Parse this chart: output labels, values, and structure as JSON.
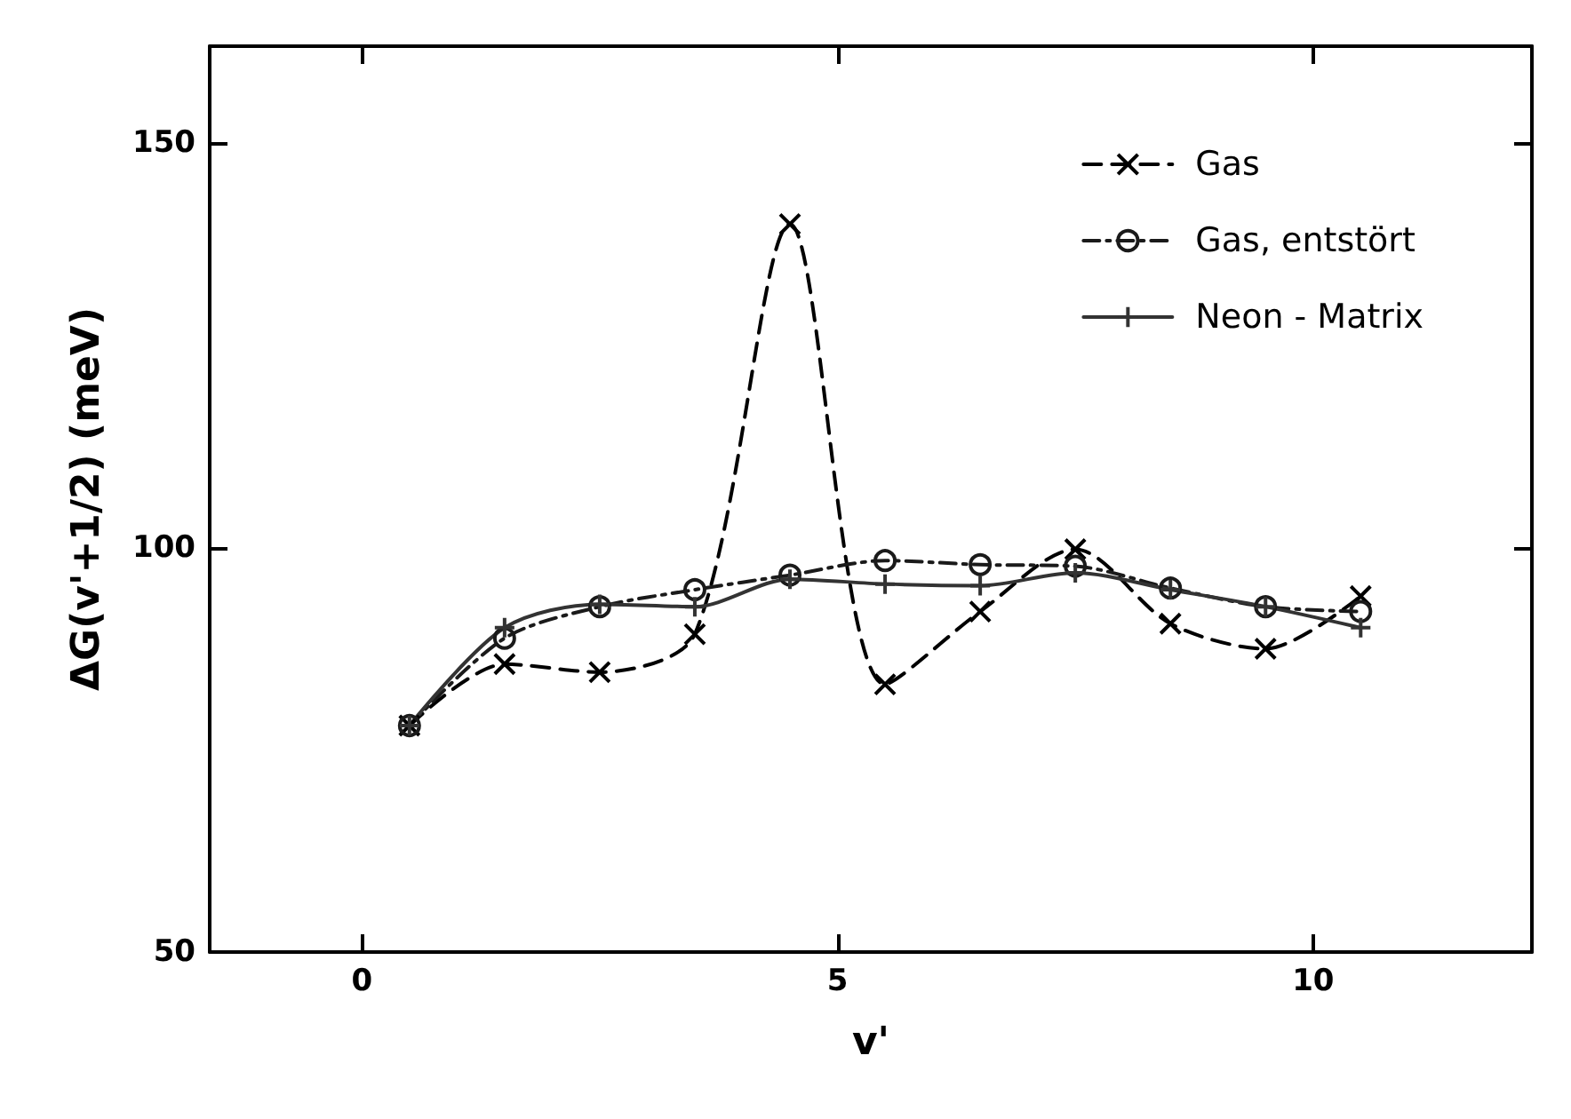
{
  "chart_data": {
    "type": "line",
    "xlabel": "v'",
    "ylabel": "ΔG(v'+1/2) (meV)",
    "x": [
      0.5,
      1.5,
      2.5,
      3.5,
      4.5,
      5.5,
      6.5,
      7.5,
      8.5,
      9.5,
      10.5
    ],
    "series": [
      {
        "name": "Gas",
        "color": "#000000",
        "marker": "cross",
        "line_style": "dashed",
        "values": [
          78,
          85.6,
          84.6,
          89.3,
          140,
          83.1,
          92.1,
          99.8,
          90.6,
          87.5,
          94
        ]
      },
      {
        "name": "Gas, entstört",
        "color": "#1a1a1a",
        "marker": "circle",
        "line_style": "dashdot",
        "values": [
          78,
          88.8,
          92.7,
          94.8,
          96.6,
          98.4,
          97.9,
          97.7,
          95,
          92.7,
          92.1
        ]
      },
      {
        "name": "Neon - Matrix",
        "color": "#333333",
        "marker": "plus",
        "line_style": "solid",
        "values": [
          78,
          90.1,
          93,
          92.7,
          96.1,
          95.5,
          95.3,
          96.9,
          94.8,
          92.7,
          90.1
        ]
      }
    ],
    "xlim": [
      -1.6,
      12.3
    ],
    "ylim": [
      50,
      162
    ],
    "xticks": [
      0,
      5,
      10
    ],
    "yticks": [
      50,
      100,
      150
    ],
    "grid": false,
    "legend": "top right"
  }
}
